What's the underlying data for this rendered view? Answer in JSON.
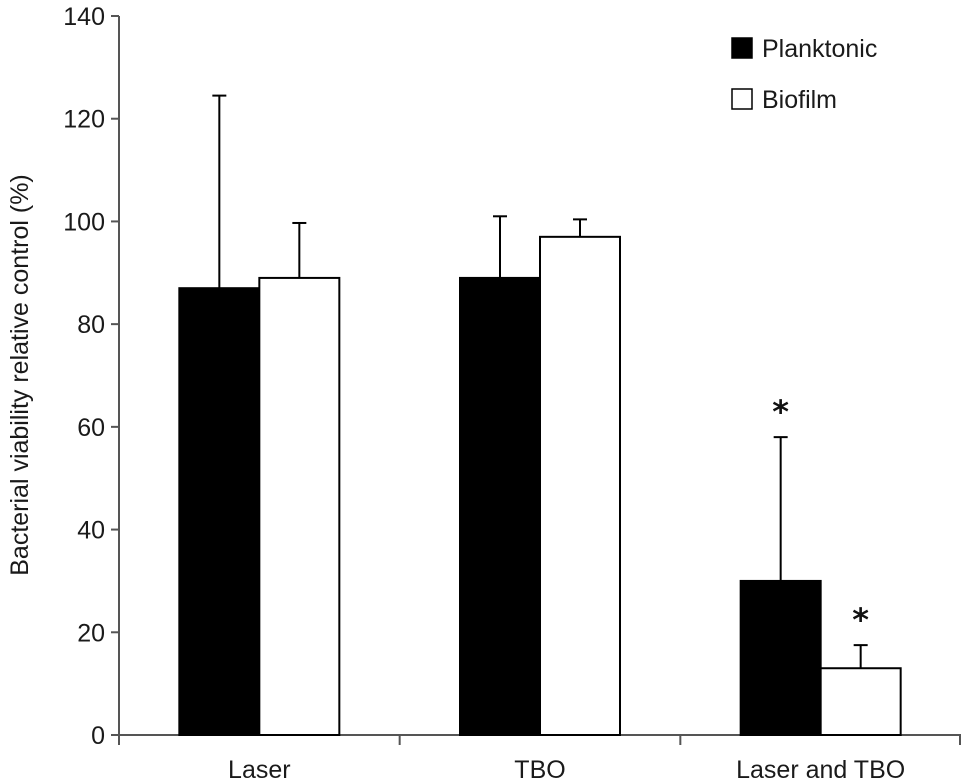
{
  "chart_data": {
    "type": "bar",
    "title": "",
    "xlabel": "",
    "ylabel": "Bacterial viability relative control (%)",
    "ylim": [
      0,
      140
    ],
    "yticks": [
      "0",
      "20",
      "40",
      "60",
      "80",
      "100",
      "120",
      "140"
    ],
    "categories": [
      "Laser",
      "TBO",
      "Laser and TBO"
    ],
    "series": [
      {
        "name": "Planktonic",
        "color": "#000000",
        "values": [
          87,
          89,
          30
        ],
        "error_upper": [
          124.5,
          101,
          58
        ],
        "annotations": [
          "",
          "",
          "*"
        ]
      },
      {
        "name": "Biofilm",
        "color": "#ffffff",
        "values": [
          89,
          97,
          13
        ],
        "error_upper": [
          99.7,
          100.4,
          17.5
        ],
        "annotations": [
          "",
          "",
          "*"
        ]
      }
    ],
    "legend": {
      "position": "top-right",
      "entries": [
        "Planktonic",
        "Biofilm"
      ]
    },
    "grid": false
  }
}
